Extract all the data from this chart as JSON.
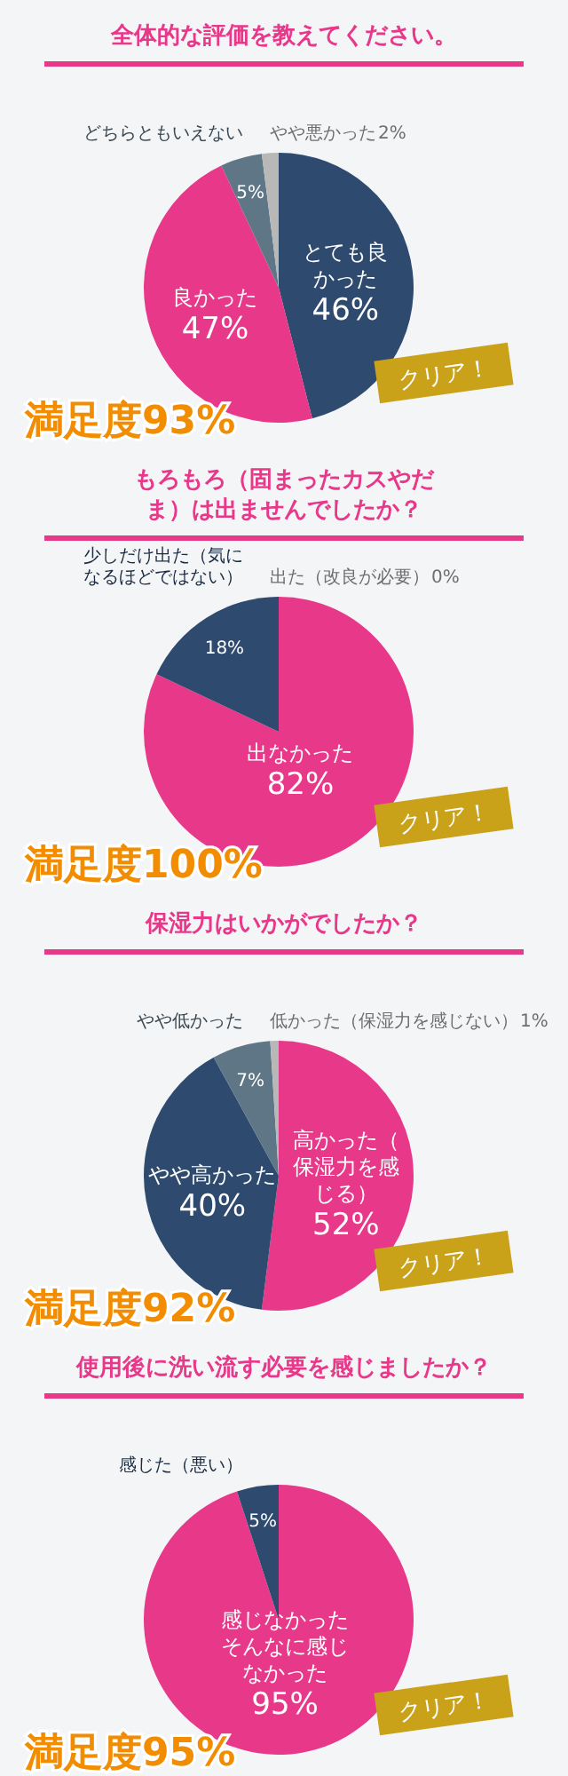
{
  "chart_data": [
    {
      "type": "pie",
      "title": "全体的な評価を教えてください。",
      "categories": [
        "とても良かった",
        "良かった",
        "どちらともいえない",
        "やや悪かった"
      ],
      "values": [
        46,
        47,
        5,
        2
      ],
      "colors": [
        "#2e4a6e",
        "#e8388a",
        "#5f7687",
        "#b8b8b8"
      ],
      "value_labels": [
        "46%",
        "47%",
        "5%",
        "2%"
      ],
      "annotations": [
        "満足度93%",
        "クリア！"
      ]
    },
    {
      "type": "pie",
      "title": "もろもろ（固まったカスやだま）は出ませんでしたか？",
      "categories": [
        "出なかった",
        "少しだけ出た（気になるほどではない）",
        "出た（改良が必要）"
      ],
      "values": [
        82,
        18,
        0
      ],
      "colors": [
        "#e8388a",
        "#2e4a6e",
        "#b8b8b8"
      ],
      "value_labels": [
        "82%",
        "18%",
        "0%"
      ],
      "annotations": [
        "満足度100%",
        "クリア！"
      ]
    },
    {
      "type": "pie",
      "title": "保湿力はいかがでしたか？",
      "categories": [
        "高かった（保湿力を感じる）",
        "やや高かった",
        "やや低かった",
        "低かった（保湿力を感じない）"
      ],
      "values": [
        52,
        40,
        7,
        1
      ],
      "colors": [
        "#e8388a",
        "#2e4a6e",
        "#5f7687",
        "#b8b8b8"
      ],
      "value_labels": [
        "52%",
        "40%",
        "7%",
        "1%"
      ],
      "annotations": [
        "満足度92%",
        "クリア！"
      ]
    },
    {
      "type": "pie",
      "title": "使用後に洗い流す必要を感じましたか？",
      "categories": [
        "感じなかったそんなに感じなかった",
        "感じた（悪い）"
      ],
      "values": [
        95,
        5
      ],
      "colors": [
        "#e8388a",
        "#2e4a6e"
      ],
      "value_labels": [
        "95%",
        "5%"
      ],
      "annotations": [
        "満足度95%",
        "クリア！"
      ]
    }
  ]
}
